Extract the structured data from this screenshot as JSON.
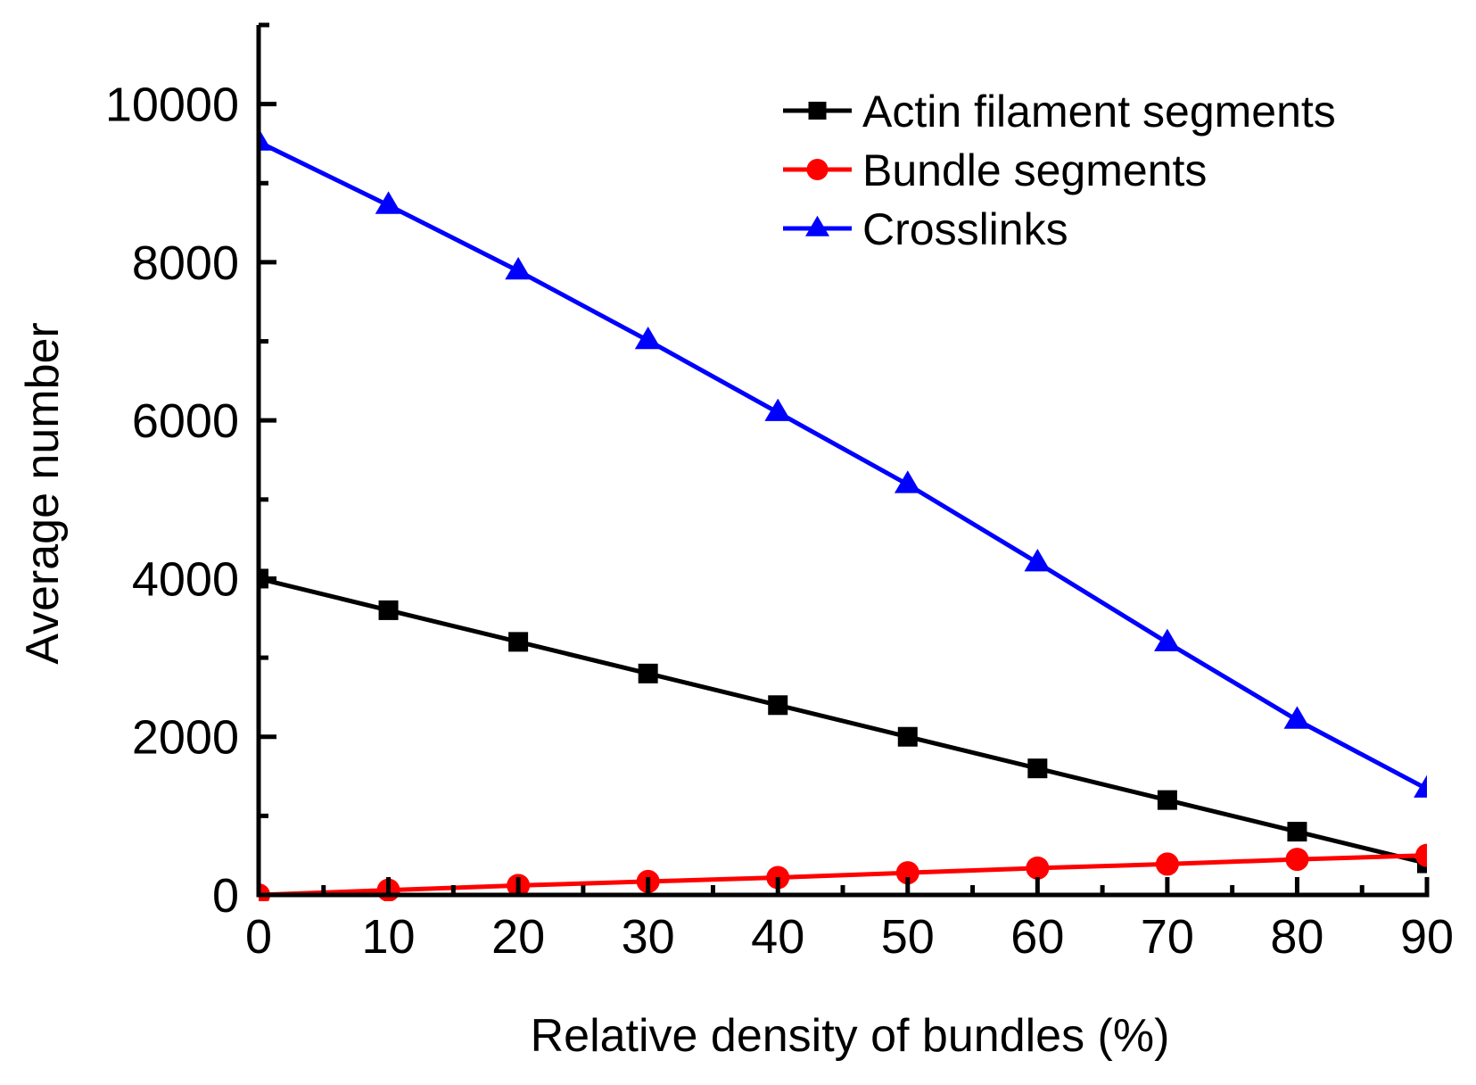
{
  "chart_data": {
    "type": "line",
    "title": "",
    "xlabel": "Relative density of bundles (%)",
    "ylabel": "Average number",
    "x": [
      0,
      10,
      20,
      30,
      40,
      50,
      60,
      70,
      80,
      90
    ],
    "xlim": [
      0,
      90
    ],
    "ylim": [
      0,
      11000
    ],
    "xticks": [
      0,
      10,
      20,
      30,
      40,
      50,
      60,
      70,
      80,
      90
    ],
    "xtick_labels": [
      "0",
      "10",
      "20",
      "30",
      "40",
      "50",
      "60",
      "70",
      "80",
      "90"
    ],
    "yticks": [
      0,
      2000,
      4000,
      6000,
      8000,
      10000
    ],
    "ytick_labels": [
      "0",
      "2000",
      "4000",
      "6000",
      "8000",
      "10000"
    ],
    "grid": false,
    "legend_position": "top-right",
    "series": [
      {
        "name": "Actin filament segments",
        "color": "#000000",
        "marker": "square",
        "values": [
          4000,
          3600,
          3200,
          2800,
          2400,
          2000,
          1600,
          1200,
          800,
          400
        ]
      },
      {
        "name": "Bundle segments",
        "color": "#ff0000",
        "marker": "circle",
        "values": [
          0,
          60,
          120,
          170,
          220,
          280,
          340,
          390,
          450,
          500
        ]
      },
      {
        "name": "Crosslinks",
        "color": "#0000ff",
        "marker": "triangle",
        "values": [
          9520,
          8720,
          7890,
          7010,
          6100,
          5190,
          4200,
          3190,
          2210,
          1340
        ]
      }
    ]
  }
}
